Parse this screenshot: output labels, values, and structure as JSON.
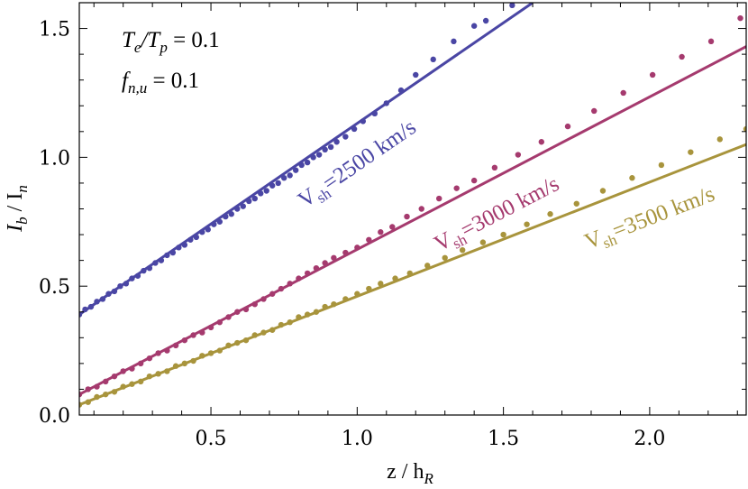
{
  "chart_data": {
    "type": "scatter",
    "title": "",
    "xlabel": {
      "base": "z / h",
      "sub": "R"
    },
    "ylabel": {
      "base": "I",
      "sub1": "b",
      "mid": " / I",
      "sub2": "n"
    },
    "xlim": [
      0.05,
      2.33
    ],
    "ylim": [
      0.0,
      1.6
    ],
    "xticks": [
      {
        "value": 0.5,
        "label": "0.5"
      },
      {
        "value": 1.0,
        "label": "1.0"
      },
      {
        "value": 1.5,
        "label": "1.5"
      },
      {
        "value": 2.0,
        "label": "2.0"
      }
    ],
    "yticks": [
      {
        "value": 0.0,
        "label": "0.0"
      },
      {
        "value": 0.5,
        "label": "0.5"
      },
      {
        "value": 1.0,
        "label": "1.0"
      },
      {
        "value": 1.5,
        "label": "1.5"
      }
    ],
    "grid": false,
    "annotations": [
      {
        "lhs": "T",
        "lhs_sub": "e",
        "sep": "/T",
        "sep_sub": "p",
        "rhs": " = 0.1"
      },
      {
        "lhs": "f",
        "lhs_sub": "n,u",
        "rhs": " = 0.1"
      }
    ],
    "series": [
      {
        "name": {
          "base": "V",
          "sub": "sh",
          "rest": "=2500 km/s"
        },
        "color": "#4a46a4",
        "fit": {
          "x": [
            0.05,
            1.6
          ],
          "y": [
            0.39,
            1.6
          ]
        },
        "points": {
          "x": [
            0.05,
            0.07,
            0.09,
            0.11,
            0.13,
            0.15,
            0.17,
            0.19,
            0.21,
            0.23,
            0.25,
            0.27,
            0.29,
            0.31,
            0.33,
            0.35,
            0.37,
            0.39,
            0.41,
            0.43,
            0.45,
            0.47,
            0.49,
            0.51,
            0.53,
            0.55,
            0.57,
            0.59,
            0.61,
            0.63,
            0.65,
            0.67,
            0.69,
            0.71,
            0.73,
            0.75,
            0.77,
            0.79,
            0.81,
            0.83,
            0.85,
            0.87,
            0.89,
            0.91,
            0.93,
            0.96,
            0.99,
            1.02,
            1.06,
            1.1,
            1.15,
            1.2,
            1.26,
            1.33,
            1.4,
            1.44,
            1.53
          ],
          "y": [
            0.39,
            0.41,
            0.42,
            0.44,
            0.45,
            0.47,
            0.48,
            0.5,
            0.51,
            0.53,
            0.54,
            0.56,
            0.57,
            0.59,
            0.6,
            0.62,
            0.63,
            0.65,
            0.66,
            0.68,
            0.69,
            0.71,
            0.72,
            0.74,
            0.75,
            0.77,
            0.78,
            0.8,
            0.81,
            0.83,
            0.84,
            0.86,
            0.87,
            0.89,
            0.9,
            0.92,
            0.93,
            0.95,
            0.97,
            0.98,
            1.0,
            1.01,
            1.03,
            1.04,
            1.06,
            1.08,
            1.11,
            1.14,
            1.17,
            1.21,
            1.26,
            1.32,
            1.38,
            1.45,
            1.51,
            1.53,
            1.59
          ]
        }
      },
      {
        "name": {
          "base": "V",
          "sub": "sh",
          "rest": "=3000 km/s"
        },
        "color": "#a53a6e",
        "fit": {
          "x": [
            0.05,
            2.33
          ],
          "y": [
            0.08,
            1.43
          ]
        },
        "points": {
          "x": [
            0.05,
            0.08,
            0.11,
            0.14,
            0.17,
            0.2,
            0.23,
            0.26,
            0.29,
            0.32,
            0.35,
            0.38,
            0.41,
            0.44,
            0.47,
            0.5,
            0.53,
            0.56,
            0.59,
            0.62,
            0.65,
            0.68,
            0.71,
            0.74,
            0.77,
            0.8,
            0.83,
            0.86,
            0.89,
            0.92,
            0.96,
            1.0,
            1.04,
            1.08,
            1.12,
            1.17,
            1.22,
            1.28,
            1.34,
            1.4,
            1.47,
            1.55,
            1.63,
            1.72,
            1.81,
            1.91,
            2.01,
            2.11,
            2.21,
            2.31
          ],
          "y": [
            0.08,
            0.1,
            0.11,
            0.13,
            0.15,
            0.17,
            0.18,
            0.2,
            0.22,
            0.24,
            0.25,
            0.27,
            0.29,
            0.31,
            0.32,
            0.34,
            0.36,
            0.38,
            0.4,
            0.41,
            0.43,
            0.45,
            0.47,
            0.49,
            0.51,
            0.53,
            0.55,
            0.57,
            0.59,
            0.61,
            0.63,
            0.65,
            0.68,
            0.71,
            0.73,
            0.77,
            0.8,
            0.84,
            0.88,
            0.91,
            0.96,
            1.01,
            1.06,
            1.12,
            1.18,
            1.25,
            1.32,
            1.39,
            1.45,
            1.54
          ]
        }
      },
      {
        "name": {
          "base": "V",
          "sub": "sh",
          "rest": "=3500 km/s"
        },
        "color": "#a8943c",
        "fit": {
          "x": [
            0.05,
            2.33
          ],
          "y": [
            0.04,
            1.05
          ]
        },
        "points": {
          "x": [
            0.05,
            0.08,
            0.11,
            0.14,
            0.17,
            0.2,
            0.23,
            0.26,
            0.29,
            0.32,
            0.35,
            0.38,
            0.41,
            0.44,
            0.47,
            0.5,
            0.53,
            0.56,
            0.59,
            0.62,
            0.65,
            0.68,
            0.71,
            0.74,
            0.77,
            0.8,
            0.83,
            0.86,
            0.89,
            0.92,
            0.96,
            1.0,
            1.04,
            1.08,
            1.13,
            1.18,
            1.24,
            1.3,
            1.36,
            1.43,
            1.5,
            1.58,
            1.66,
            1.75,
            1.84,
            1.94,
            2.04,
            2.14,
            2.24,
            2.33
          ],
          "y": [
            0.04,
            0.05,
            0.07,
            0.08,
            0.09,
            0.11,
            0.12,
            0.13,
            0.15,
            0.16,
            0.17,
            0.19,
            0.2,
            0.21,
            0.23,
            0.24,
            0.25,
            0.27,
            0.28,
            0.29,
            0.31,
            0.32,
            0.33,
            0.35,
            0.36,
            0.38,
            0.39,
            0.4,
            0.42,
            0.43,
            0.45,
            0.47,
            0.49,
            0.51,
            0.53,
            0.55,
            0.58,
            0.61,
            0.64,
            0.67,
            0.7,
            0.74,
            0.78,
            0.82,
            0.87,
            0.92,
            0.97,
            1.02,
            1.07,
            1.11
          ]
        }
      }
    ]
  }
}
